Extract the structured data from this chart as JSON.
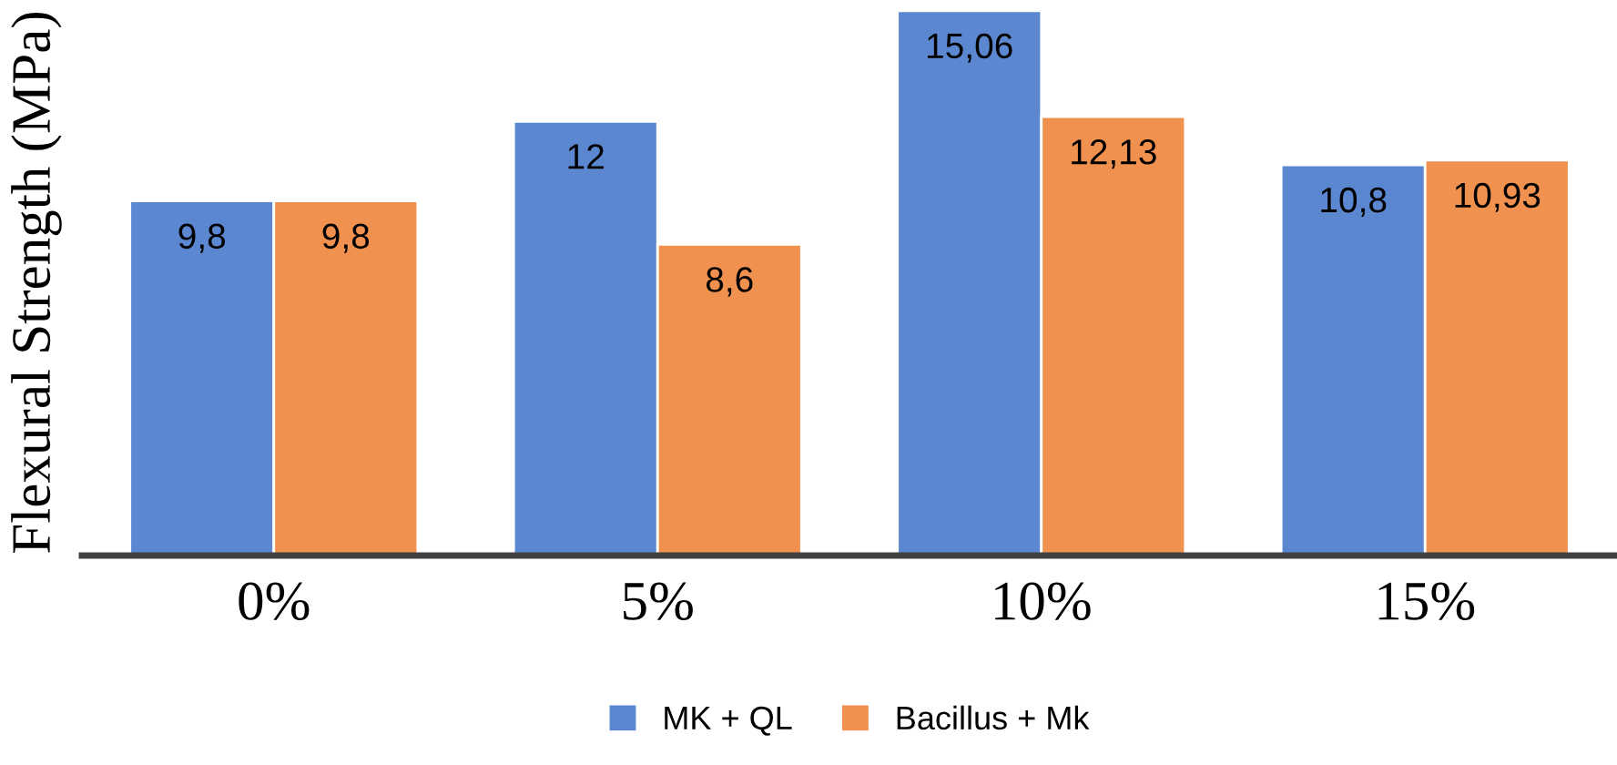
{
  "chart_data": {
    "type": "bar",
    "ylabel": "Flexural Strength (MPa)",
    "categories": [
      "0%",
      "5%",
      "10%",
      "15%"
    ],
    "series": [
      {
        "name": "MK + QL",
        "color": "#5b87d0",
        "values": [
          9.8,
          12,
          15.06,
          10.8
        ],
        "value_labels": [
          "9,8",
          "12",
          "15,06",
          "10,8"
        ]
      },
      {
        "name": "Bacillus + Mk",
        "color": "#f0914f",
        "values": [
          9.8,
          8.6,
          12.13,
          10.93
        ],
        "value_labels": [
          "9,8",
          "8,6",
          "12,13",
          "10,93"
        ]
      }
    ],
    "legend": "bottom",
    "grid": false
  }
}
